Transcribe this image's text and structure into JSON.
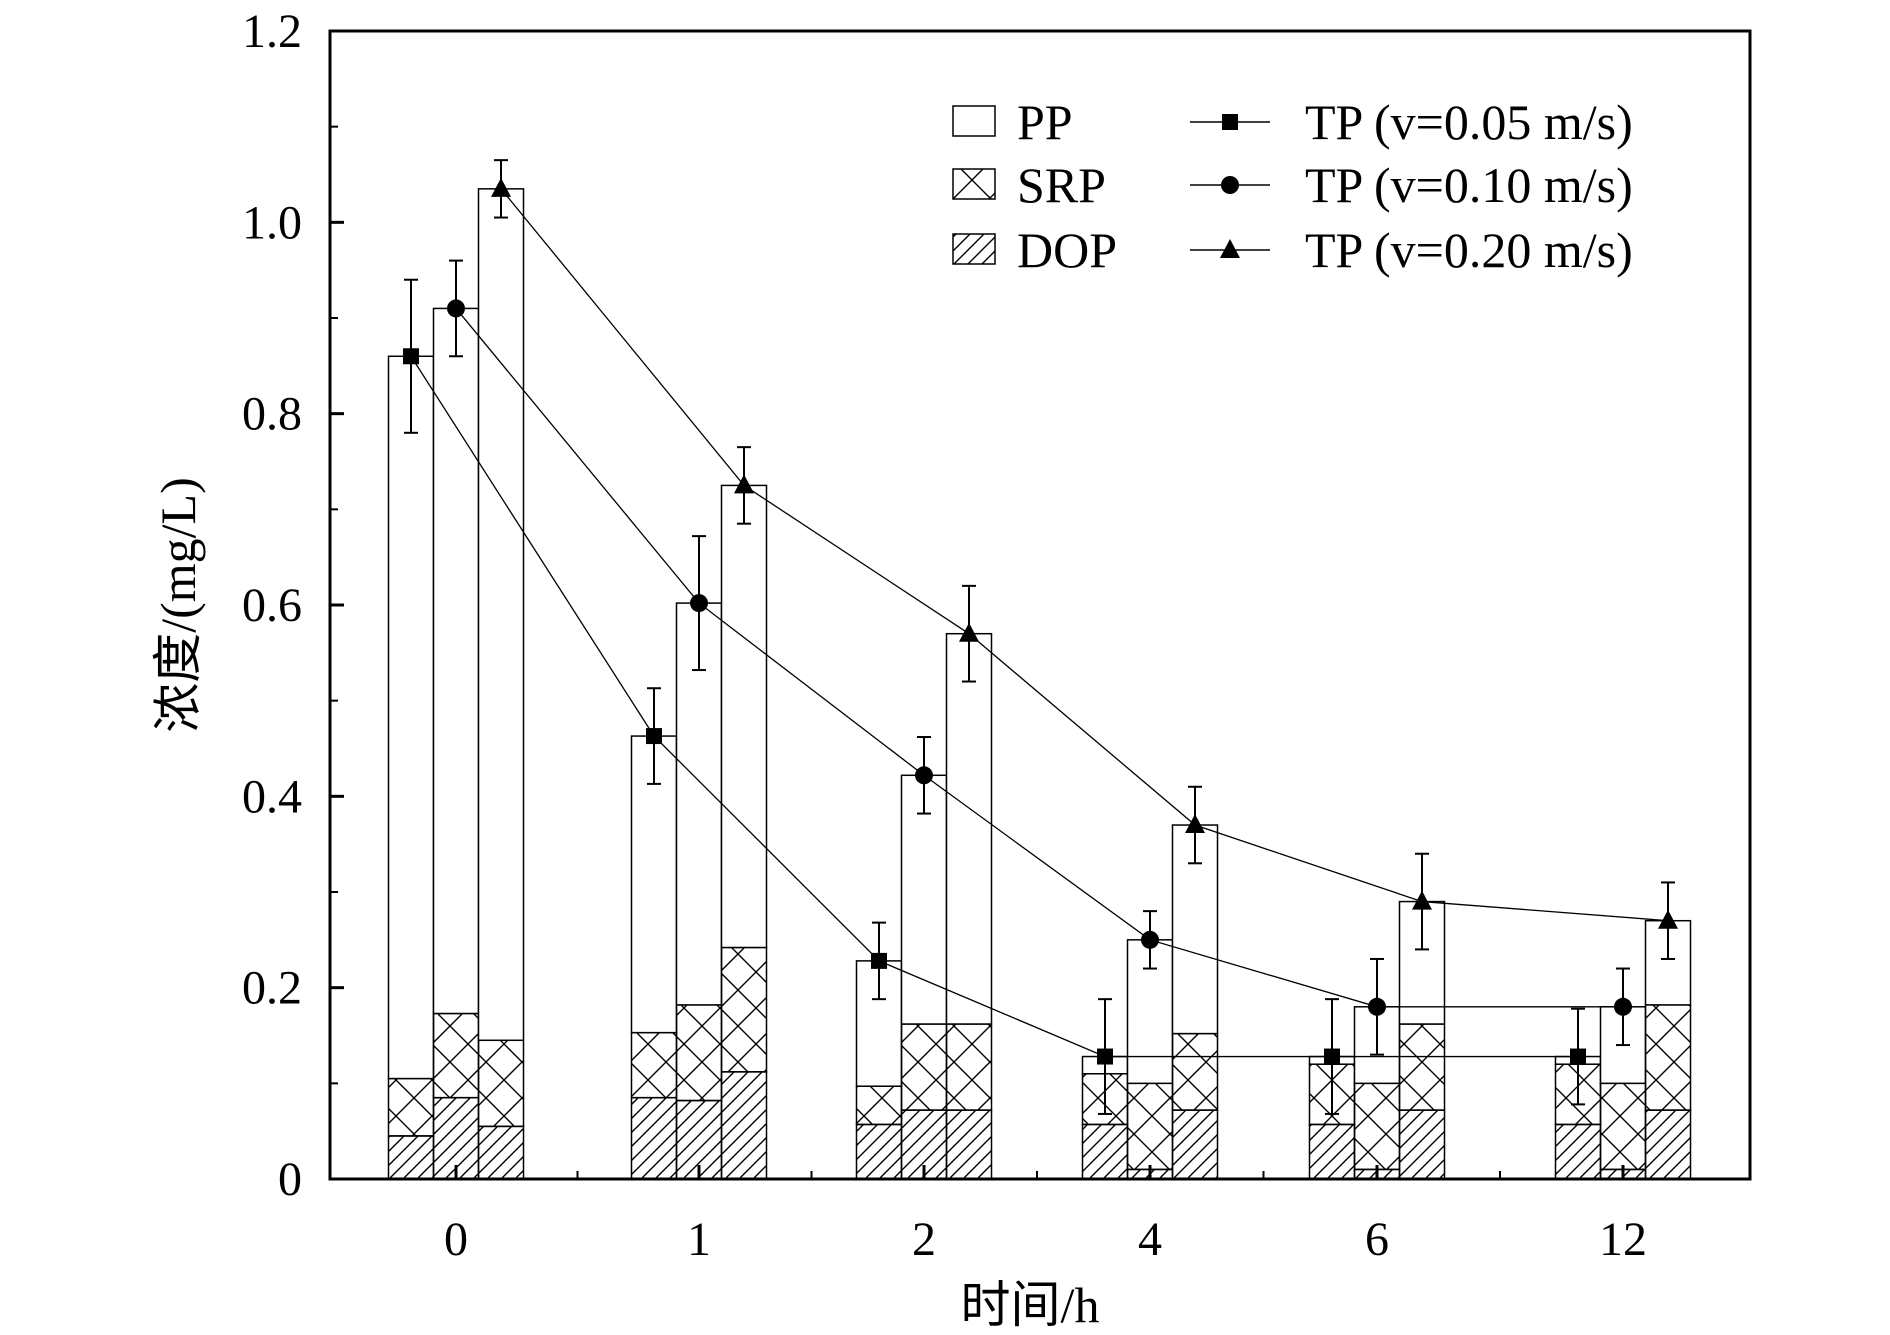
{
  "chart_data": {
    "type": "bar",
    "xlabel": "时间/h",
    "ylabel": "浓度/(mg/L)",
    "ylim": [
      0,
      1.2
    ],
    "yticks": [
      "0",
      "0.2",
      "0.4",
      "0.6",
      "0.8",
      "1.0",
      "1.2"
    ],
    "categories": [
      "0",
      "1",
      "2",
      "4",
      "6",
      "12"
    ],
    "bar_groups": [
      "v=0.05 m/s",
      "v=0.10 m/s",
      "v=0.20 m/s"
    ],
    "stack_components": [
      {
        "name": "PP",
        "pattern": "blank"
      },
      {
        "name": "SRP",
        "pattern": "crosshatch"
      },
      {
        "name": "DOP",
        "pattern": "diagonal"
      }
    ],
    "stacks": [
      [
        {
          "DOP": 0.045,
          "SRP": 0.06,
          "PP": 0.755
        },
        {
          "DOP": 0.085,
          "SRP": 0.088,
          "PP": 0.737
        },
        {
          "DOP": 0.055,
          "SRP": 0.09,
          "PP": 0.89
        }
      ],
      [
        {
          "DOP": 0.085,
          "SRP": 0.068,
          "PP": 0.31
        },
        {
          "DOP": 0.082,
          "SRP": 0.1,
          "PP": 0.42
        },
        {
          "DOP": 0.112,
          "SRP": 0.13,
          "PP": 0.483
        }
      ],
      [
        {
          "DOP": 0.057,
          "SRP": 0.04,
          "PP": 0.131
        },
        {
          "DOP": 0.072,
          "SRP": 0.09,
          "PP": 0.26
        },
        {
          "DOP": 0.072,
          "SRP": 0.09,
          "PP": 0.408
        }
      ],
      [
        {
          "DOP": 0.057,
          "SRP": 0.053,
          "PP": 0.018
        },
        {
          "DOP": 0.01,
          "SRP": 0.09,
          "PP": 0.15
        },
        {
          "DOP": 0.072,
          "SRP": 0.08,
          "PP": 0.218
        }
      ],
      [
        {
          "DOP": 0.057,
          "SRP": 0.063,
          "PP": 0.008
        },
        {
          "DOP": 0.01,
          "SRP": 0.09,
          "PP": 0.08
        },
        {
          "DOP": 0.072,
          "SRP": 0.09,
          "PP": 0.128
        }
      ],
      [
        {
          "DOP": 0.057,
          "SRP": 0.063,
          "PP": 0.008
        },
        {
          "DOP": 0.01,
          "SRP": 0.09,
          "PP": 0.08
        },
        {
          "DOP": 0.072,
          "SRP": 0.11,
          "PP": 0.088
        }
      ]
    ],
    "series": [
      {
        "name": "TP (v=0.05 m/s)",
        "marker": "square",
        "values": [
          0.86,
          0.463,
          0.228,
          0.128,
          0.128,
          0.128
        ],
        "errors": [
          0.08,
          0.05,
          0.04,
          0.06,
          0.06,
          0.05
        ]
      },
      {
        "name": "TP (v=0.10 m/s)",
        "marker": "circle",
        "values": [
          0.91,
          0.602,
          0.422,
          0.25,
          0.18,
          0.18
        ],
        "errors": [
          0.05,
          0.07,
          0.04,
          0.03,
          0.05,
          0.04
        ]
      },
      {
        "name": "TP (v=0.20 m/s)",
        "marker": "triangle",
        "values": [
          1.035,
          0.725,
          0.57,
          0.37,
          0.29,
          0.27
        ],
        "errors": [
          0.03,
          0.04,
          0.05,
          0.04,
          0.05,
          0.04
        ]
      }
    ],
    "grid": false,
    "legend_position": "top-right"
  }
}
